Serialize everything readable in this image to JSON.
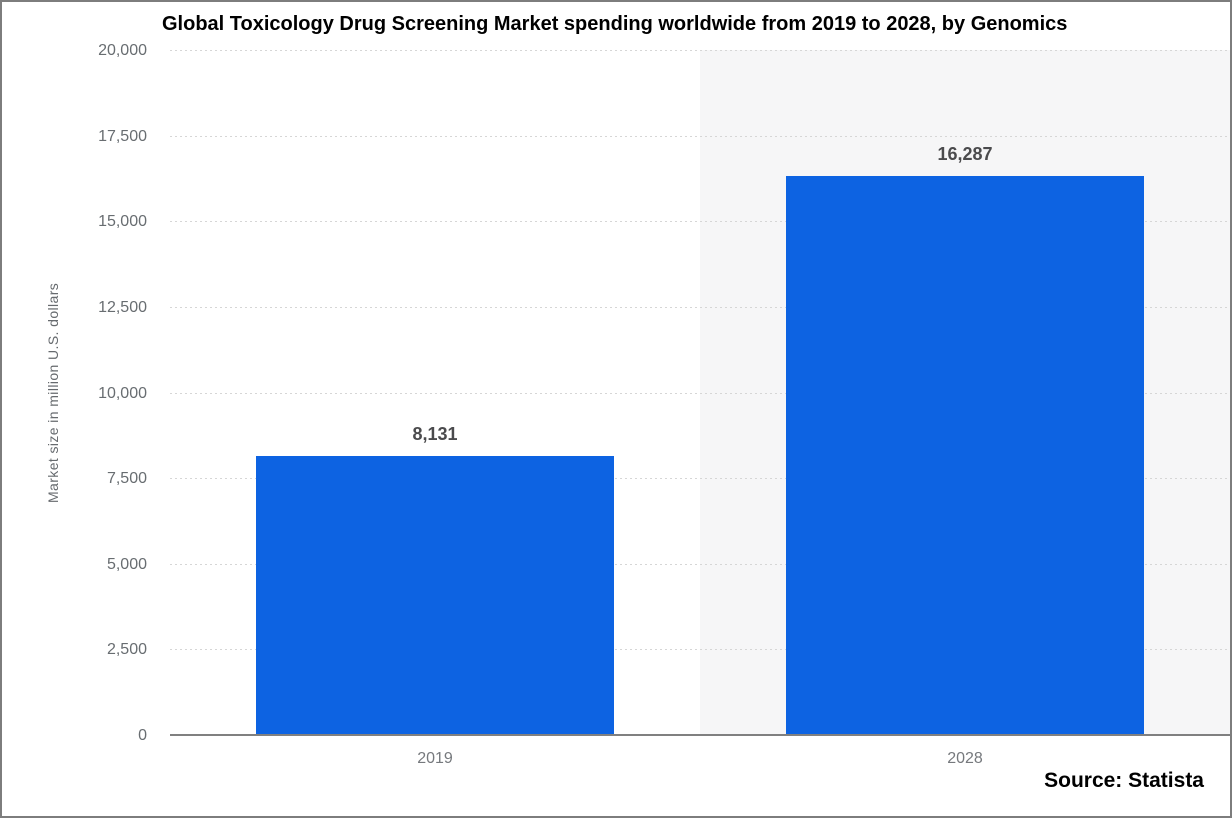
{
  "chart_data": {
    "type": "bar",
    "title": "Global Toxicology Drug Screening Market spending worldwide from 2019 to 2028, by Genomics",
    "categories": [
      "2019",
      "2028"
    ],
    "values": [
      8131,
      16287
    ],
    "value_labels": [
      "8,131",
      "16,287"
    ],
    "xlabel": "",
    "ylabel": "Market size in million U.S. dollars",
    "ylim": [
      0,
      20000
    ],
    "ytick_step": 2500,
    "ytick_labels": [
      "20,000",
      "17,500",
      "15,000",
      "12,500",
      "10,000",
      "7,500",
      "5,000",
      "2,500",
      "0"
    ],
    "grid": "horizontal-dotted",
    "legend": "none",
    "bar_color": "#0d63e2",
    "highlighted_category": "2028",
    "highlight_band_color": "#f6f6f7"
  },
  "source": {
    "label": "Source: Statista"
  }
}
